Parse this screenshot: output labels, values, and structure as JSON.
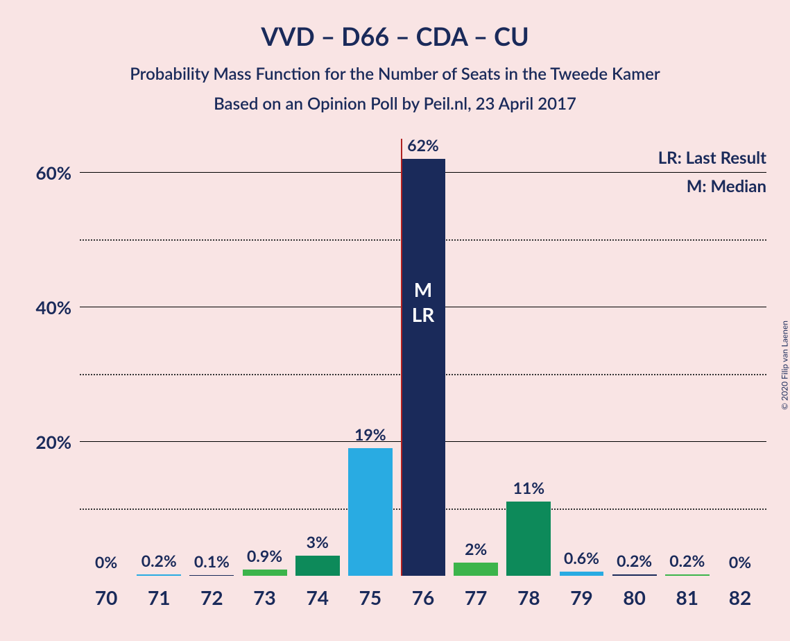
{
  "chart": {
    "type": "bar",
    "title": "VVD – D66 – CDA – CU",
    "subtitle1": "Probability Mass Function for the Number of Seats in the Tweede Kamer",
    "subtitle2": "Based on an Opinion Poll by Peil.nl, 23 April 2017",
    "title_fontsize": 36,
    "subtitle_fontsize": 24,
    "text_color": "#1a2a5a",
    "background_color": "#f9e4e4",
    "ymax": 65,
    "y_ticks": [
      {
        "value": 10,
        "label": "",
        "style": "dotted"
      },
      {
        "value": 20,
        "label": "20%",
        "style": "solid"
      },
      {
        "value": 30,
        "label": "",
        "style": "dotted"
      },
      {
        "value": 40,
        "label": "40%",
        "style": "solid"
      },
      {
        "value": 50,
        "label": "",
        "style": "dotted"
      },
      {
        "value": 60,
        "label": "60%",
        "style": "solid"
      }
    ],
    "median_x": 76,
    "median_line_color": "#b02020",
    "legend": {
      "line1": "LR: Last Result",
      "line2": "M: Median"
    },
    "bars": [
      {
        "x": "70",
        "value": 0,
        "label": "0%",
        "color": "#29abe2"
      },
      {
        "x": "71",
        "value": 0.2,
        "label": "0.2%",
        "color": "#29abe2"
      },
      {
        "x": "72",
        "value": 0.1,
        "label": "0.1%",
        "color": "#1a2a5a"
      },
      {
        "x": "73",
        "value": 0.9,
        "label": "0.9%",
        "color": "#3cb44b"
      },
      {
        "x": "74",
        "value": 3,
        "label": "3%",
        "color": "#0d8a5a"
      },
      {
        "x": "75",
        "value": 19,
        "label": "19%",
        "color": "#29abe2"
      },
      {
        "x": "76",
        "value": 62,
        "label": "62%",
        "color": "#1a2a5a",
        "inner_top": "M",
        "inner_bottom": "LR"
      },
      {
        "x": "77",
        "value": 2,
        "label": "2%",
        "color": "#3cb44b"
      },
      {
        "x": "78",
        "value": 11,
        "label": "11%",
        "color": "#0d8a5a"
      },
      {
        "x": "79",
        "value": 0.6,
        "label": "0.6%",
        "color": "#29abe2"
      },
      {
        "x": "80",
        "value": 0.2,
        "label": "0.2%",
        "color": "#1a2a5a"
      },
      {
        "x": "81",
        "value": 0.2,
        "label": "0.2%",
        "color": "#3cb44b"
      },
      {
        "x": "82",
        "value": 0,
        "label": "0%",
        "color": "#0d8a5a"
      }
    ],
    "bar_width_pct": 84,
    "xlabel_fontsize": 28,
    "barlabel_fontsize": 23,
    "yticklabel_fontsize": 26
  },
  "copyright": "© 2020 Filip van Laenen"
}
